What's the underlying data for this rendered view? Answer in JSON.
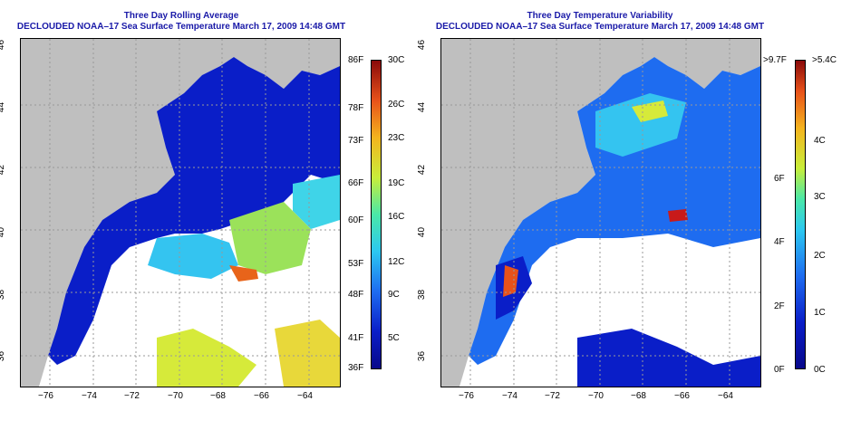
{
  "colors": {
    "land": "#bfbfbf",
    "title": "#1a1aa8",
    "cold": "#0a1ec8",
    "grid": "#999999"
  },
  "left_panel": {
    "title_line1": "Three Day Rolling Average",
    "title_line2": "DECLOUDED NOAA–17 Sea Surface Temperature March 17, 2009 14:48 GMT",
    "x_ticks": [
      "−76",
      "−74",
      "−72",
      "−70",
      "−68",
      "−66",
      "−64"
    ],
    "y_ticks": [
      "46",
      "44",
      "42",
      "40",
      "38",
      "36"
    ],
    "colorbar": {
      "left_labels": [
        "86F",
        "78F",
        "73F",
        "66F",
        "60F",
        "53F",
        "48F",
        "41F",
        "36F"
      ],
      "right_labels": [
        "30C",
        "26C",
        "23C",
        "19C",
        "16C",
        "12C",
        "9C",
        "5C"
      ]
    }
  },
  "right_panel": {
    "title_line1": "Three Day Temperature Variability",
    "title_line2": "DECLOUDED NOAA–17 Sea Surface Temperature March 17, 2009 14:48 GMT",
    "x_ticks": [
      "−76",
      "−74",
      "−72",
      "−70",
      "−68",
      "−66",
      "−64"
    ],
    "y_ticks": [
      "46",
      "44",
      "42",
      "40",
      "38",
      "36"
    ],
    "colorbar": {
      "left_labels": [
        ">9.7F",
        "6F",
        "4F",
        "2F",
        "0F"
      ],
      "right_labels": [
        ">5.4C",
        "4C",
        "3C",
        "2C",
        "1C",
        "0C"
      ]
    }
  }
}
